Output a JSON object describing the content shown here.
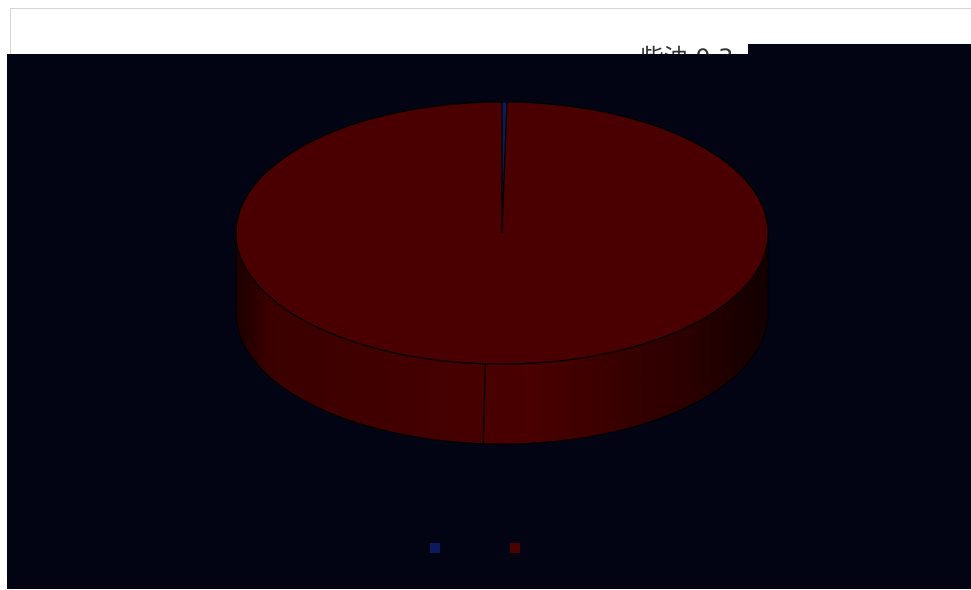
{
  "background_label": "一 柴油 0.3",
  "chart_data": {
    "type": "pie",
    "style": "3d",
    "title": "",
    "slices": [
      {
        "label": "",
        "value": 0.3,
        "color": "#0a1a5c"
      },
      {
        "label": "",
        "value": 99.7,
        "color": "#4a0000"
      }
    ],
    "annotation": "",
    "legend_position": "bottom",
    "colors": {
      "background": "#020313",
      "legend_text": "#1a1d3a"
    }
  }
}
